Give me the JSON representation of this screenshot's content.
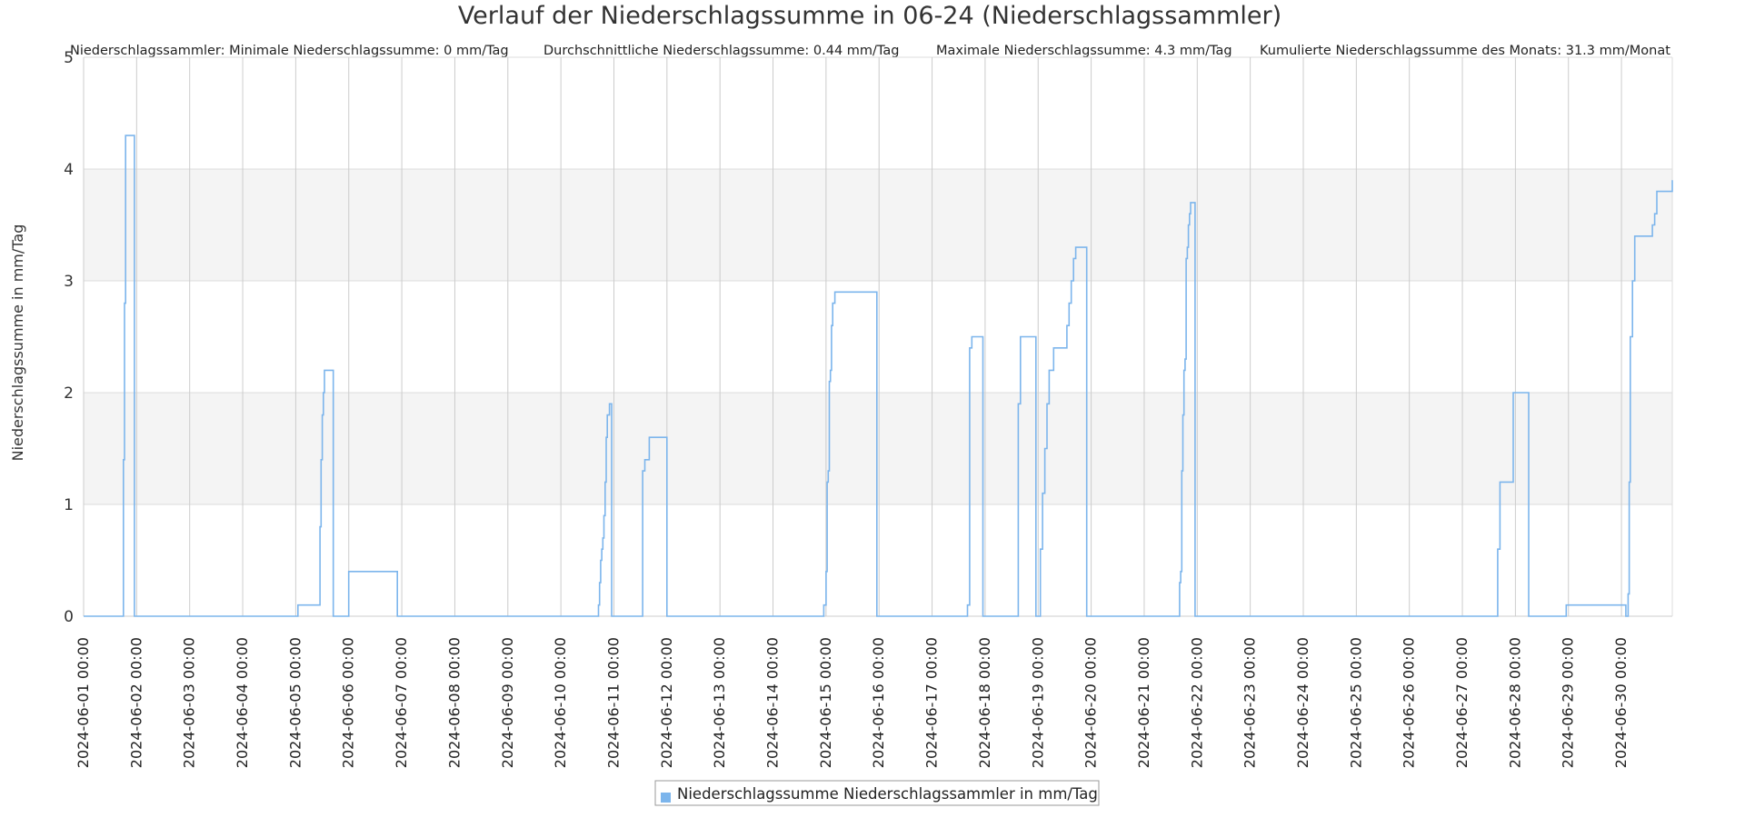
{
  "chart_data": {
    "type": "line",
    "step": true,
    "title": "Verlauf der Niederschlagssumme in 06-24 (Niederschlagssammler)",
    "stats": [
      "Niederschlagssammler: Minimale Niederschlagssumme: 0 mm/Tag",
      "Durchschnittliche Niederschlagssumme: 0.44 mm/Tag",
      "Maximale Niederschlagssumme: 4.3 mm/Tag",
      "Kumulierte Niederschlagssumme des Monats: 31.3 mm/Monat"
    ],
    "xlabel": "",
    "ylabel": "Niederschlagssumme in mm/Tag",
    "xlim": [
      "2024-06-01 00:00",
      "2024-06-30 23:00"
    ],
    "ylim": [
      0,
      5
    ],
    "yticks": [
      0,
      1,
      2,
      3,
      4,
      5
    ],
    "xtick_labels": [
      "2024-06-01 00:00",
      "2024-06-02 00:00",
      "2024-06-03 00:00",
      "2024-06-04 00:00",
      "2024-06-05 00:00",
      "2024-06-06 00:00",
      "2024-06-07 00:00",
      "2024-06-08 00:00",
      "2024-06-09 00:00",
      "2024-06-10 00:00",
      "2024-06-11 00:00",
      "2024-06-12 00:00",
      "2024-06-13 00:00",
      "2024-06-14 00:00",
      "2024-06-15 00:00",
      "2024-06-16 00:00",
      "2024-06-17 00:00",
      "2024-06-18 00:00",
      "2024-06-19 00:00",
      "2024-06-20 00:00",
      "2024-06-21 00:00",
      "2024-06-22 00:00",
      "2024-06-23 00:00",
      "2024-06-24 00:00",
      "2024-06-25 00:00",
      "2024-06-26 00:00",
      "2024-06-27 00:00",
      "2024-06-28 00:00",
      "2024-06-29 00:00",
      "2024-06-30 00:00"
    ],
    "grid": true,
    "legend_position": "bottom-center",
    "series": [
      {
        "name": "Niederschlagssumme Niederschlagssammler in mm/Tag",
        "color": "#7cb5ec",
        "x": [
          "2024-06-01 00:00",
          "2024-06-01 18:00",
          "2024-06-01 18:30",
          "2024-06-01 19:00",
          "2024-06-01 23:00",
          "2024-06-05 01:00",
          "2024-06-05 11:00",
          "2024-06-05 11:30",
          "2024-06-05 12:00",
          "2024-06-05 12:30",
          "2024-06-05 13:00",
          "2024-06-05 17:00",
          "2024-06-06 00:00",
          "2024-06-06 22:00",
          "2024-06-07 00:00",
          "2024-06-10 17:00",
          "2024-06-10 17:30",
          "2024-06-10 18:00",
          "2024-06-10 18:30",
          "2024-06-10 19:00",
          "2024-06-10 19:30",
          "2024-06-10 20:00",
          "2024-06-10 20:30",
          "2024-06-10 21:00",
          "2024-06-10 22:00",
          "2024-06-10 23:00",
          "2024-06-11 13:00",
          "2024-06-11 14:00",
          "2024-06-11 16:00",
          "2024-06-12 00:00",
          "2024-06-14 23:00",
          "2024-06-15 00:00",
          "2024-06-15 00:30",
          "2024-06-15 01:00",
          "2024-06-15 01:30",
          "2024-06-15 02:00",
          "2024-06-15 02:30",
          "2024-06-15 03:00",
          "2024-06-15 04:00",
          "2024-06-15 05:00",
          "2024-06-15 23:00",
          "2024-06-17 16:00",
          "2024-06-17 17:00",
          "2024-06-17 18:00",
          "2024-06-17 23:00",
          "2024-06-18 15:00",
          "2024-06-18 16:00",
          "2024-06-18 23:00",
          "2024-06-19 01:00",
          "2024-06-19 02:00",
          "2024-06-19 03:00",
          "2024-06-19 04:00",
          "2024-06-19 05:00",
          "2024-06-19 07:00",
          "2024-06-19 08:00",
          "2024-06-19 13:00",
          "2024-06-19 14:00",
          "2024-06-19 15:00",
          "2024-06-19 16:00",
          "2024-06-19 17:00",
          "2024-06-19 22:00",
          "2024-06-21 16:00",
          "2024-06-21 16:30",
          "2024-06-21 17:00",
          "2024-06-21 17:30",
          "2024-06-21 18:00",
          "2024-06-21 18:30",
          "2024-06-21 19:00",
          "2024-06-21 19:30",
          "2024-06-21 20:00",
          "2024-06-21 20:30",
          "2024-06-21 21:00",
          "2024-06-21 23:00",
          "2024-06-27 16:00",
          "2024-06-27 17:00",
          "2024-06-27 23:00",
          "2024-06-28 06:00",
          "2024-06-28 23:00",
          "2024-06-30 02:00",
          "2024-06-30 03:00",
          "2024-06-30 03:30",
          "2024-06-30 04:00",
          "2024-06-30 05:00",
          "2024-06-30 06:00",
          "2024-06-30 14:00",
          "2024-06-30 15:00",
          "2024-06-30 16:00",
          "2024-06-30 23:00"
        ],
        "values": [
          0,
          1.4,
          2.8,
          4.3,
          0,
          0.1,
          0.8,
          1.4,
          1.8,
          2.0,
          2.2,
          0,
          0.4,
          0,
          0,
          0.1,
          0.3,
          0.5,
          0.6,
          0.7,
          0.9,
          1.2,
          1.6,
          1.8,
          1.9,
          0,
          1.3,
          1.4,
          1.6,
          0,
          0.1,
          0.4,
          1.2,
          1.3,
          2.1,
          2.2,
          2.6,
          2.8,
          2.9,
          2.9,
          0,
          0.1,
          2.4,
          2.5,
          0,
          1.9,
          2.5,
          0,
          0.6,
          1.1,
          1.5,
          1.9,
          2.2,
          2.4,
          2.4,
          2.6,
          2.8,
          3.0,
          3.2,
          3.3,
          0,
          0.3,
          0.4,
          1.3,
          1.8,
          2.2,
          2.3,
          3.2,
          3.3,
          3.5,
          3.6,
          3.7,
          0,
          0.6,
          1.2,
          2.0,
          0,
          0.1,
          0,
          0.2,
          1.2,
          2.5,
          3.0,
          3.4,
          3.5,
          3.6,
          3.8,
          3.9
        ]
      }
    ]
  }
}
